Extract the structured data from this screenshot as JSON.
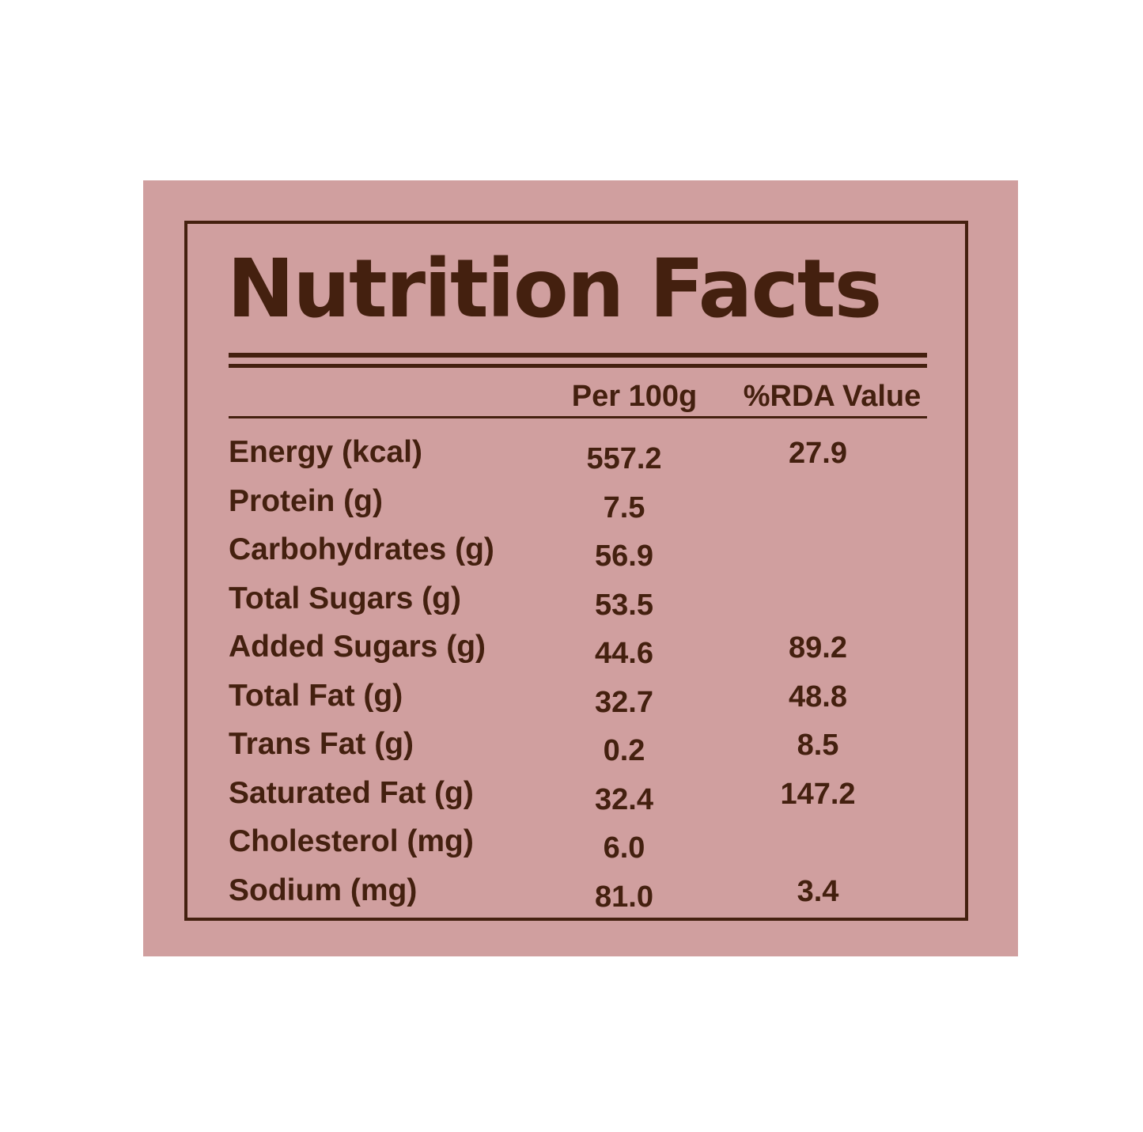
{
  "label": {
    "title": "Nutrition Facts",
    "columns": {
      "per_100g": "Per 100g",
      "rda": "%RDA Value"
    },
    "rows": [
      {
        "nutrient": "Energy (kcal)",
        "per_100g": "557.2",
        "rda": "27.9"
      },
      {
        "nutrient": "Protein (g)",
        "per_100g": "7.5",
        "rda": ""
      },
      {
        "nutrient": "Carbohydrates (g)",
        "per_100g": "56.9",
        "rda": ""
      },
      {
        "nutrient": "Total Sugars (g)",
        "per_100g": "53.5",
        "rda": ""
      },
      {
        "nutrient": "Added Sugars (g)",
        "per_100g": "44.6",
        "rda": "89.2"
      },
      {
        "nutrient": "Total Fat (g)",
        "per_100g": "32.7",
        "rda": "48.8"
      },
      {
        "nutrient": "Trans Fat (g)",
        "per_100g": "0.2",
        "rda": "8.5"
      },
      {
        "nutrient": "Saturated Fat (g)",
        "per_100g": "32.4",
        "rda": "147.2"
      },
      {
        "nutrient": "Cholesterol (mg)",
        "per_100g": "6.0",
        "rda": ""
      },
      {
        "nutrient": "Sodium (mg)",
        "per_100g": "81.0",
        "rda": "3.4"
      }
    ]
  },
  "colors": {
    "background": "#ffffff",
    "panel": "#d09f9f",
    "ink": "#44200f"
  }
}
